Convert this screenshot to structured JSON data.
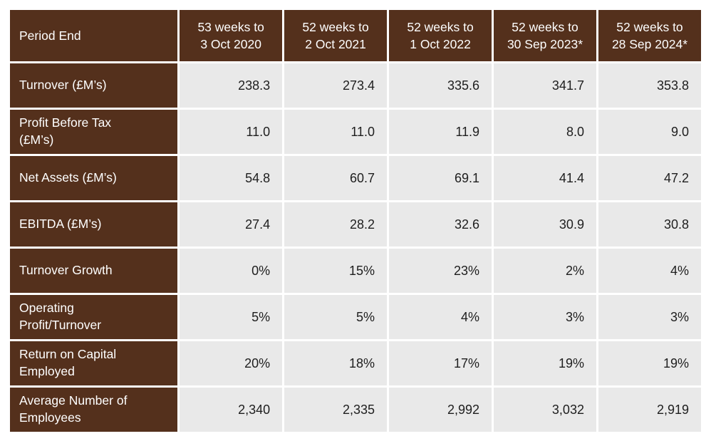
{
  "colors": {
    "header_bg": "#54301C",
    "header_text": "#FFFFFF",
    "cell_bg": "#E9E9E9",
    "cell_text": "#1E1E1E",
    "page_bg": "#FFFFFF"
  },
  "chart_data": {
    "type": "table",
    "corner_label": "Period End",
    "columns": [
      "53 weeks to\n3 Oct 2020",
      "52 weeks to\n2 Oct 2021",
      "52 weeks to\n1 Oct 2022",
      "52 weeks to\n30 Sep 2023*",
      "52 weeks to\n28 Sep 2024*"
    ],
    "rows": [
      {
        "label": "Turnover (£M’s)",
        "values": [
          "238.3",
          "273.4",
          "335.6",
          "341.7",
          "353.8"
        ]
      },
      {
        "label": "Profit Before Tax\n(£M’s)",
        "values": [
          "11.0",
          "11.0",
          "11.9",
          "8.0",
          "9.0"
        ]
      },
      {
        "label": "Net Assets (£M’s)",
        "values": [
          "54.8",
          "60.7",
          "69.1",
          "41.4",
          "47.2"
        ]
      },
      {
        "label": "EBITDA (£M’s)",
        "values": [
          "27.4",
          "28.2",
          "32.6",
          "30.9",
          "30.8"
        ]
      },
      {
        "label": "Turnover Growth",
        "values": [
          "0%",
          "15%",
          "23%",
          "2%",
          "4%"
        ]
      },
      {
        "label": "Operating\nProfit/Turnover",
        "values": [
          "5%",
          "5%",
          "4%",
          "3%",
          "3%"
        ]
      },
      {
        "label": "Return on Capital\nEmployed",
        "values": [
          "20%",
          "18%",
          "17%",
          "19%",
          "19%"
        ]
      },
      {
        "label": "Average Number of\nEmployees",
        "values": [
          "2,340",
          "2,335",
          "2,992",
          "3,032",
          "2,919"
        ]
      }
    ]
  }
}
